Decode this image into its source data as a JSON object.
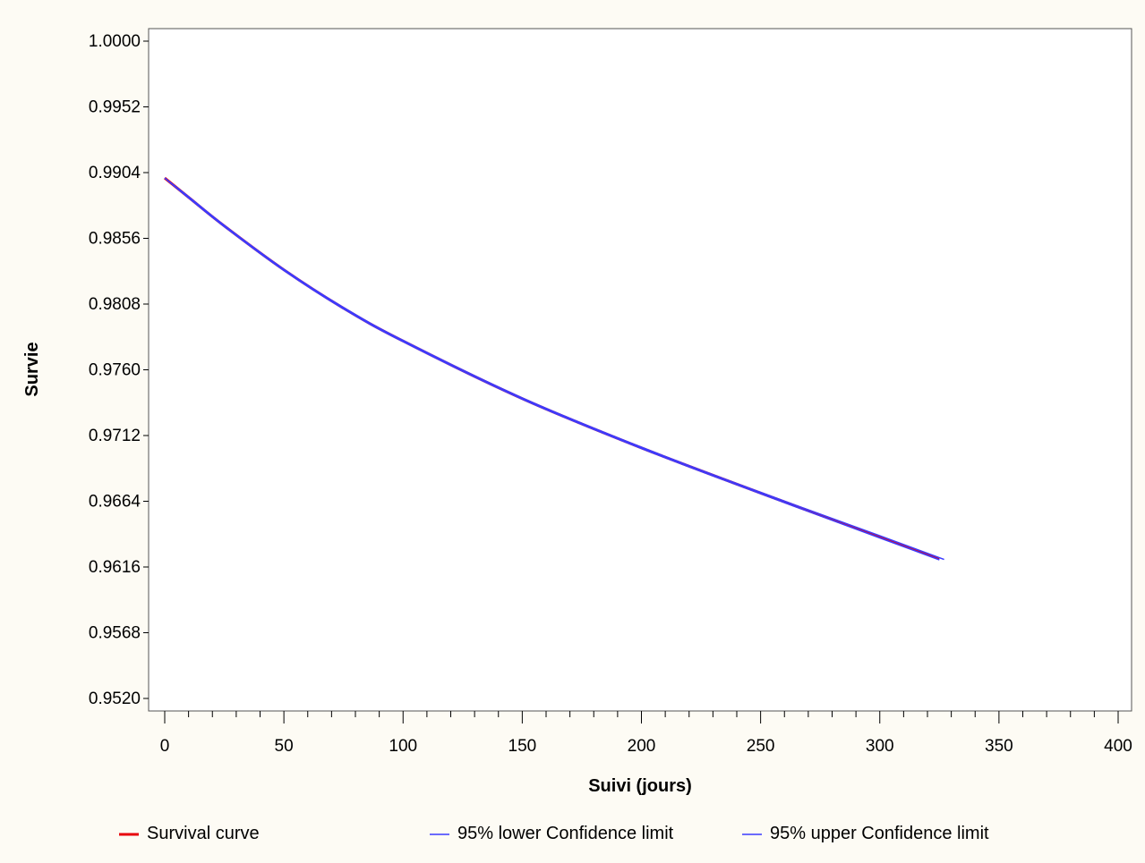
{
  "chart_data": {
    "type": "line",
    "xlabel": "Suivi (jours)",
    "ylabel": "Survie",
    "xlim": [
      0,
      400
    ],
    "ylim": [
      0.952,
      1.0
    ],
    "x_ticks": [
      0,
      50,
      100,
      150,
      200,
      250,
      300,
      350,
      400
    ],
    "x_tick_labels": [
      "0",
      "50",
      "100",
      "150",
      "200",
      "250",
      "300",
      "350",
      "400"
    ],
    "y_ticks": [
      0.952,
      0.9568,
      0.9616,
      0.9664,
      0.9712,
      0.976,
      0.9808,
      0.9856,
      0.9904,
      0.9952,
      1.0
    ],
    "y_tick_labels": [
      "0.9520",
      "0.9568",
      "0.9616",
      "0.9664",
      "0.9712",
      "0.9760",
      "0.9808",
      "0.9856",
      "0.9904",
      "0.9952",
      "1.0000"
    ],
    "grid": false,
    "legend_position": "bottom",
    "series": [
      {
        "name": "Survival curve",
        "color": "#e8000b",
        "x": [
          0,
          10,
          25,
          50,
          75,
          100,
          150,
          200,
          250,
          300,
          325
        ],
        "y": [
          0.99,
          0.9886,
          0.9865,
          0.9833,
          0.9805,
          0.9781,
          0.9739,
          0.9703,
          0.967,
          0.9638,
          0.9622
        ]
      },
      {
        "name": "95% lower Confidence limit",
        "color": "#3b3bff",
        "x": [
          0,
          10,
          25,
          50,
          75,
          100,
          150,
          200,
          250,
          300,
          325
        ],
        "y": [
          0.99,
          0.98855,
          0.98645,
          0.98325,
          0.98045,
          0.97805,
          0.97385,
          0.97025,
          0.96695,
          0.96372,
          0.96212
        ]
      },
      {
        "name": "95% upper Confidence limit",
        "color": "#3b3bff",
        "x": [
          0,
          10,
          25,
          50,
          75,
          100,
          150,
          200,
          250,
          300,
          327
        ],
        "y": [
          0.99,
          0.98865,
          0.98655,
          0.98335,
          0.98055,
          0.97815,
          0.97395,
          0.97035,
          0.96705,
          0.96388,
          0.96215
        ]
      }
    ]
  }
}
